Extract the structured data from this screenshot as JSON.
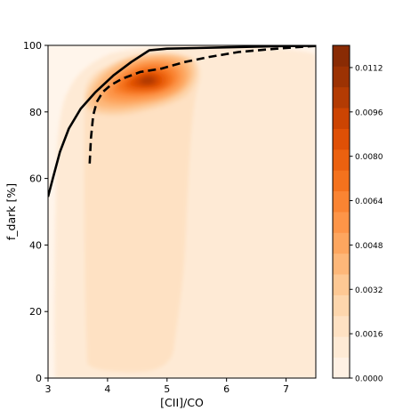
{
  "chart_data": {
    "type": "heatmap",
    "xlabel": "[CII]/CO",
    "ylabel": "f_dark [%]",
    "xlim": [
      3,
      7.5
    ],
    "ylim": [
      0,
      100
    ],
    "x_ticks": [
      3,
      4,
      5,
      6,
      7
    ],
    "y_ticks": [
      0,
      20,
      40,
      60,
      80,
      100
    ],
    "grid": false,
    "density": {
      "description_free": true,
      "peak": {
        "x": 4.75,
        "y": 91,
        "value": 0.0117
      },
      "colormap": "Oranges"
    },
    "colorbar": {
      "range": [
        0,
        0.012
      ],
      "levels": 16,
      "tick_values": [
        0.0,
        0.0016,
        0.0032,
        0.0048,
        0.0064,
        0.008,
        0.0096,
        0.0112
      ],
      "tick_labels": [
        "0.0000",
        "0.0016",
        "0.0032",
        "0.0048",
        "0.0064",
        "0.0080",
        "0.0096",
        "0.0112"
      ]
    },
    "series": [
      {
        "style": "solid",
        "color": "#000000",
        "x": [
          3.0,
          3.08,
          3.2,
          3.35,
          3.55,
          3.8,
          4.1,
          4.4,
          4.7,
          5.0,
          5.5,
          6.0,
          6.5,
          7.0,
          7.5
        ],
        "y": [
          54.5,
          60,
          68,
          75,
          81,
          86,
          91,
          95,
          98.5,
          99,
          99.2,
          99.4,
          99.6,
          99.8,
          99.9
        ]
      },
      {
        "style": "dashed",
        "color": "#000000",
        "x": [
          3.7,
          3.72,
          3.76,
          3.82,
          3.92,
          4.05,
          4.25,
          4.55,
          4.9,
          5.3,
          5.7,
          6.2,
          6.7,
          7.2,
          7.5
        ],
        "y": [
          64.5,
          72,
          79,
          83,
          86,
          88,
          90,
          92,
          93,
          95,
          96.5,
          98,
          98.8,
          99.5,
          99.8
        ]
      }
    ]
  }
}
